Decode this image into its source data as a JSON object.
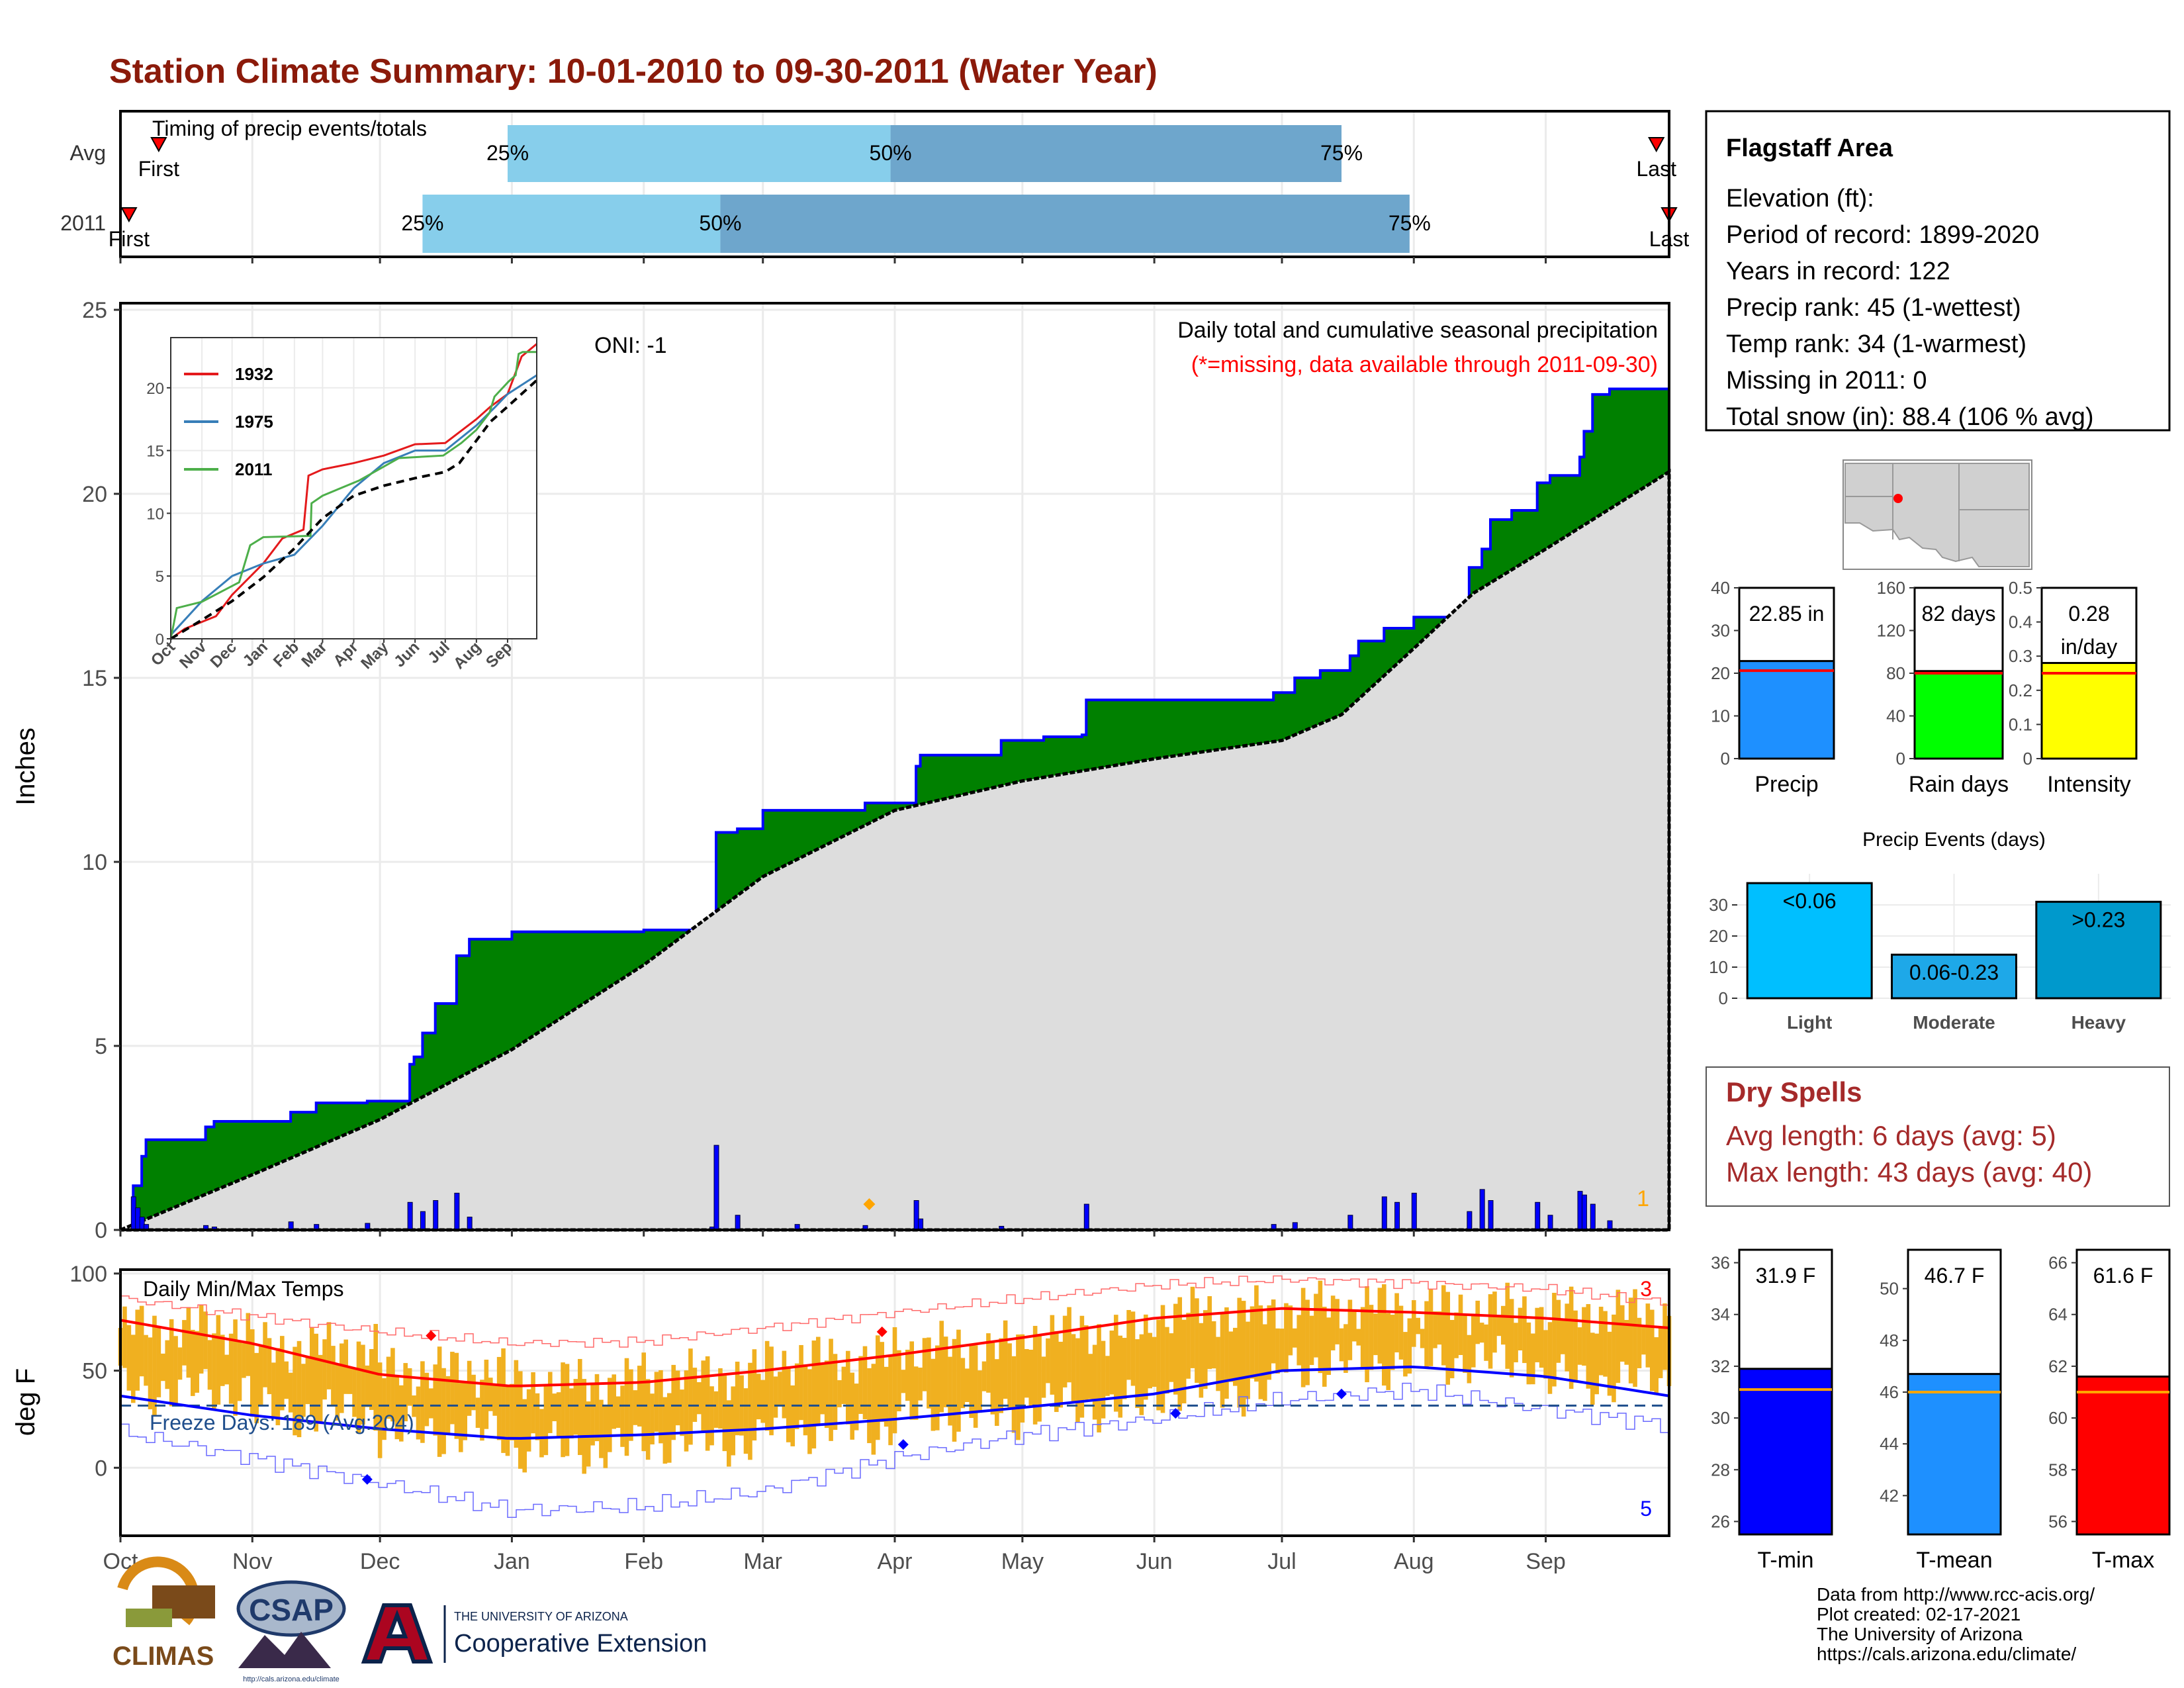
{
  "page": {
    "title": "Station Climate Summary: 10-01-2010 to 09-30-2011 (Water Year)"
  },
  "colors": {
    "title": "#8b1a0a",
    "q_light": "#87ceeb",
    "q_dark": "#6ea6cc",
    "cum_fill": "#008000",
    "cum_line": "#0000ff",
    "avg_fill": "#dddddd",
    "daily_bar": "#0000ff",
    "temp_bar": "#f0b020",
    "tmax_avg": "#ff0000",
    "tmin_avg": "#0000ff",
    "dry_spells": "#a52a2a",
    "precip_bar": "#1e90ff",
    "raindays_bar": "#00ff00",
    "intensity_bar": "#ffff00",
    "tmin_bar": "#0000ff",
    "tmean_bar": "#1e90ff",
    "tmax_bar": "#ff0000",
    "events_light": "#00bfff",
    "events_moderate": "#1ea8e8",
    "events_heavy": "#0099cc"
  },
  "chart_data": [
    {
      "id": "timing",
      "type": "bar",
      "title": "Timing of precip events/totals",
      "categories": [
        "Avg",
        "2011"
      ],
      "x_axis": "date",
      "xlim": [
        "2010-10-01",
        "2011-09-30"
      ],
      "series": [
        {
          "name": "Avg",
          "first": "2010-10-10",
          "q25": "2010-12-31",
          "q50": "2011-03-31",
          "q75": "2011-07-15",
          "last": "2011-09-27",
          "labels": {
            "first": "First",
            "last": "Last",
            "q25": "25%",
            "q50": "50%",
            "q75": "75%"
          }
        },
        {
          "name": "2011",
          "first": "2010-10-03",
          "q25": "2010-12-11",
          "q50": "2011-02-19",
          "q75": "2011-07-31",
          "last": "2011-09-30",
          "labels": {
            "first": "First",
            "last": "Last",
            "q25": "25%",
            "q50": "50%",
            "q75": "75%"
          }
        }
      ]
    },
    {
      "id": "precip",
      "type": "area",
      "ylabel": "Inches",
      "ylim": [
        0,
        25
      ],
      "yticks": [
        0,
        5,
        10,
        15,
        20,
        25
      ],
      "x_axis": "date",
      "xlim": [
        "2010-10-01",
        "2011-09-30"
      ],
      "grid": true,
      "annotations": {
        "oni": "ONI: -1",
        "subtitle": "Daily total and cumulative seasonal precipitation",
        "missing": "(*=missing, data available through 2011-09-30)",
        "corner_count": "1"
      },
      "avg_cumulative": {
        "x": [
          "2010-10-01",
          "2010-11-01",
          "2010-12-01",
          "2011-01-01",
          "2011-02-01",
          "2011-03-01",
          "2011-04-01",
          "2011-05-01",
          "2011-06-01",
          "2011-07-01",
          "2011-07-15",
          "2011-08-01",
          "2011-08-15",
          "2011-09-01",
          "2011-09-30"
        ],
        "y": [
          0.0,
          1.5,
          3.0,
          4.9,
          7.2,
          9.6,
          11.4,
          12.2,
          12.8,
          13.3,
          14.0,
          15.8,
          17.3,
          18.5,
          20.6
        ]
      },
      "cumulative_2011": {
        "x": [
          "2010-10-01",
          "2010-10-04",
          "2010-10-06",
          "2010-10-07",
          "2010-10-21",
          "2010-10-23",
          "2010-11-10",
          "2010-11-16",
          "2010-11-28",
          "2010-12-08",
          "2010-12-09",
          "2010-12-11",
          "2010-12-14",
          "2010-12-19",
          "2010-12-22",
          "2011-01-01",
          "2011-02-01",
          "2011-02-17",
          "2011-02-18",
          "2011-02-23",
          "2011-03-01",
          "2011-03-09",
          "2011-03-25",
          "2011-04-06",
          "2011-04-07",
          "2011-04-26",
          "2011-05-06",
          "2011-05-15",
          "2011-05-16",
          "2011-06-01",
          "2011-06-29",
          "2011-07-04",
          "2011-07-10",
          "2011-07-17",
          "2011-07-19",
          "2011-07-25",
          "2011-08-01",
          "2011-08-14",
          "2011-08-17",
          "2011-08-19",
          "2011-08-24",
          "2011-08-30",
          "2011-09-02",
          "2011-09-09",
          "2011-09-10",
          "2011-09-12",
          "2011-09-16",
          "2011-09-30"
        ],
        "y": [
          0.0,
          1.2,
          2.0,
          2.45,
          2.8,
          2.95,
          3.2,
          3.45,
          3.5,
          4.5,
          4.7,
          5.35,
          6.15,
          7.45,
          7.9,
          8.1,
          8.15,
          8.2,
          10.8,
          10.9,
          11.4,
          11.4,
          11.6,
          12.6,
          12.9,
          13.3,
          13.4,
          13.45,
          14.4,
          14.4,
          14.6,
          15.0,
          15.2,
          15.6,
          16.0,
          16.35,
          16.65,
          18.0,
          18.5,
          19.3,
          19.55,
          20.3,
          20.5,
          21.0,
          21.7,
          22.7,
          22.85,
          22.85
        ]
      },
      "daily": {
        "x": [
          "2010-10-04",
          "2010-10-05",
          "2010-10-06",
          "2010-10-07",
          "2010-10-21",
          "2010-10-23",
          "2010-11-10",
          "2010-11-16",
          "2010-11-28",
          "2010-12-08",
          "2010-12-11",
          "2010-12-14",
          "2010-12-19",
          "2010-12-22",
          "2011-02-17",
          "2011-02-18",
          "2011-02-23",
          "2011-03-09",
          "2011-03-25",
          "2011-04-06",
          "2011-04-07",
          "2011-04-26",
          "2011-05-16",
          "2011-06-29",
          "2011-07-04",
          "2011-07-17",
          "2011-07-25",
          "2011-07-28",
          "2011-08-01",
          "2011-08-14",
          "2011-08-17",
          "2011-08-19",
          "2011-08-30",
          "2011-09-02",
          "2011-09-09",
          "2011-09-10",
          "2011-09-12",
          "2011-09-16"
        ],
        "y": [
          0.9,
          0.6,
          0.35,
          0.15,
          0.12,
          0.08,
          0.22,
          0.15,
          0.18,
          0.75,
          0.5,
          0.8,
          1.0,
          0.35,
          0.08,
          2.3,
          0.4,
          0.15,
          0.12,
          0.8,
          0.3,
          0.1,
          0.7,
          0.15,
          0.2,
          0.4,
          0.9,
          0.75,
          1.0,
          0.5,
          1.1,
          0.8,
          0.75,
          0.4,
          1.05,
          0.95,
          0.7,
          0.25
        ]
      }
    },
    {
      "id": "inset",
      "type": "line",
      "ylim": [
        0,
        24
      ],
      "yticks": [
        0,
        5,
        10,
        15,
        20
      ],
      "x_axis": "date",
      "xlim": [
        "2010-10-01",
        "2011-09-30"
      ],
      "xticks": [
        [
          "2010-10-01",
          "Oct"
        ],
        [
          "2010-11-01",
          "Nov"
        ],
        [
          "2010-12-01",
          "Dec"
        ],
        [
          "2011-01-01",
          "Jan"
        ],
        [
          "2011-02-01",
          "Feb"
        ],
        [
          "2011-03-01",
          "Mar"
        ],
        [
          "2011-04-01",
          "Apr"
        ],
        [
          "2011-05-01",
          "May"
        ],
        [
          "2011-06-01",
          "Jun"
        ],
        [
          "2011-07-01",
          "Jul"
        ],
        [
          "2011-08-01",
          "Aug"
        ],
        [
          "2011-09-01",
          "Sep"
        ]
      ],
      "series": [
        {
          "name": "1932",
          "color": "#e41a1c",
          "x": [
            "2010-10-01",
            "2010-10-15",
            "2010-11-15",
            "2010-12-01",
            "2011-01-01",
            "2011-01-20",
            "2011-02-10",
            "2011-02-15",
            "2011-03-01",
            "2011-04-01",
            "2011-05-01",
            "2011-06-01",
            "2011-07-01",
            "2011-08-01",
            "2011-08-15",
            "2011-09-01",
            "2011-09-15",
            "2011-09-30"
          ],
          "y": [
            0,
            0.8,
            1.8,
            3.5,
            6.0,
            8.0,
            8.7,
            13.0,
            13.5,
            14.0,
            14.6,
            15.5,
            15.6,
            17.5,
            18.5,
            19.5,
            22.5,
            23.5
          ]
        },
        {
          "name": "1975",
          "color": "#377eb8",
          "x": [
            "2010-10-01",
            "2010-11-01",
            "2010-12-01",
            "2011-01-01",
            "2011-02-01",
            "2011-03-01",
            "2011-04-01",
            "2011-05-01",
            "2011-06-01",
            "2011-07-01",
            "2011-08-01",
            "2011-08-20",
            "2011-09-01",
            "2011-09-30"
          ],
          "y": [
            0.3,
            3.0,
            5.0,
            6.0,
            6.7,
            9.0,
            12.0,
            14.0,
            15.0,
            15.0,
            17.0,
            18.5,
            19.5,
            21.0
          ]
        },
        {
          "name": "2011",
          "color": "#4daf4a",
          "x": [
            "2010-10-01",
            "2010-10-04",
            "2010-10-07",
            "2010-11-01",
            "2010-12-08",
            "2010-12-19",
            "2011-01-01",
            "2011-02-17",
            "2011-02-18",
            "2011-03-01",
            "2011-04-06",
            "2011-05-16",
            "2011-06-29",
            "2011-07-17",
            "2011-08-01",
            "2011-08-14",
            "2011-08-19",
            "2011-09-02",
            "2011-09-09",
            "2011-09-12",
            "2011-09-16",
            "2011-09-30"
          ],
          "y": [
            0,
            1.2,
            2.45,
            2.95,
            4.5,
            7.45,
            8.1,
            8.2,
            10.8,
            11.4,
            12.6,
            14.4,
            14.6,
            15.6,
            16.65,
            18.0,
            19.3,
            20.5,
            21.0,
            22.7,
            22.85,
            22.85
          ]
        },
        {
          "name": "avg",
          "color": "#000000",
          "dashed": true,
          "x": [
            "2010-10-01",
            "2010-11-01",
            "2010-12-01",
            "2011-01-01",
            "2011-02-01",
            "2011-03-01",
            "2011-04-01",
            "2011-05-01",
            "2011-06-01",
            "2011-07-01",
            "2011-07-15",
            "2011-08-01",
            "2011-08-15",
            "2011-09-01",
            "2011-09-30"
          ],
          "y": [
            0.0,
            1.5,
            3.0,
            4.9,
            7.2,
            9.6,
            11.4,
            12.2,
            12.8,
            13.3,
            14.0,
            15.8,
            17.3,
            18.5,
            20.6
          ]
        }
      ]
    },
    {
      "id": "temps",
      "type": "bar",
      "title": "Daily Min/Max Temps",
      "ylabel": "deg F",
      "ylim": [
        -35,
        102
      ],
      "yticks": [
        0,
        50,
        100
      ],
      "x_axis": "date",
      "xlim": [
        "2010-10-01",
        "2011-09-30"
      ],
      "xticks": [
        [
          "2010-10-01",
          "Oct"
        ],
        [
          "2010-11-01",
          "Nov"
        ],
        [
          "2010-12-01",
          "Dec"
        ],
        [
          "2011-01-01",
          "Jan"
        ],
        [
          "2011-02-01",
          "Feb"
        ],
        [
          "2011-03-01",
          "Mar"
        ],
        [
          "2011-04-01",
          "Apr"
        ],
        [
          "2011-05-01",
          "May"
        ],
        [
          "2011-06-01",
          "Jun"
        ],
        [
          "2011-07-01",
          "Jul"
        ],
        [
          "2011-08-01",
          "Aug"
        ],
        [
          "2011-09-01",
          "Sep"
        ]
      ],
      "grid": true,
      "freeze_label": "Freeze Days: 189 (Avg:204)",
      "freeze_line": 32,
      "count_top": "3",
      "count_bottom": "5",
      "tmax_avg": {
        "x": [
          "2010-10-01",
          "2010-11-01",
          "2010-12-01",
          "2011-01-01",
          "2011-02-01",
          "2011-03-01",
          "2011-04-01",
          "2011-05-01",
          "2011-06-01",
          "2011-07-01",
          "2011-08-01",
          "2011-09-01",
          "2011-09-30"
        ],
        "y": [
          76,
          64,
          48,
          42,
          44,
          50,
          58,
          67,
          77,
          82,
          80,
          77,
          72
        ]
      },
      "tmin_avg": {
        "x": [
          "2010-10-01",
          "2010-11-01",
          "2010-12-01",
          "2011-01-01",
          "2011-02-01",
          "2011-03-01",
          "2011-04-01",
          "2011-05-01",
          "2011-06-01",
          "2011-07-01",
          "2011-08-01",
          "2011-09-01",
          "2011-09-30"
        ],
        "y": [
          37,
          27,
          20,
          15,
          17,
          20,
          25,
          31,
          38,
          50,
          52,
          47,
          37
        ]
      },
      "tmax_record": {
        "x": [
          "2010-10-01",
          "2010-11-01",
          "2010-12-01",
          "2011-01-01",
          "2011-02-01",
          "2011-03-01",
          "2011-04-01",
          "2011-05-01",
          "2011-06-01",
          "2011-07-01",
          "2011-08-01",
          "2011-09-01",
          "2011-09-30"
        ],
        "y": [
          87,
          78,
          70,
          64,
          65,
          72,
          80,
          87,
          94,
          97,
          95,
          92,
          85
        ]
      },
      "tmin_record": {
        "x": [
          "2010-10-01",
          "2010-11-01",
          "2010-12-01",
          "2011-01-01",
          "2011-02-01",
          "2011-03-01",
          "2011-04-01",
          "2011-05-01",
          "2011-06-01",
          "2011-07-01",
          "2011-08-01",
          "2011-09-01",
          "2011-09-30"
        ],
        "y": [
          18,
          5,
          -8,
          -22,
          -20,
          -12,
          5,
          17,
          25,
          35,
          40,
          30,
          22
        ]
      },
      "monthly_high": [
        72,
        62,
        50,
        44,
        48,
        56,
        62,
        70,
        80,
        83,
        82,
        80
      ],
      "monthly_low": [
        40,
        28,
        18,
        10,
        14,
        20,
        27,
        32,
        40,
        53,
        55,
        45
      ]
    },
    {
      "id": "precip-summary",
      "type": "bar",
      "panels": [
        {
          "category": "Precip",
          "value": 22.85,
          "label": "22.85 in",
          "avg": 20.6,
          "ylim": [
            0,
            40
          ],
          "yticks": [
            0,
            10,
            20,
            30,
            40
          ]
        },
        {
          "category": "Rain days",
          "value": 82,
          "label": "82 days",
          "avg": 80,
          "ylim": [
            0,
            160
          ],
          "yticks": [
            0,
            40,
            80,
            120,
            160
          ]
        },
        {
          "category": "Intensity",
          "value": 0.28,
          "label": "0.28",
          "label2": "in/day",
          "avg": 0.25,
          "ylim": [
            0,
            0.5
          ],
          "yticks": [
            0.0,
            0.1,
            0.2,
            0.3,
            0.4,
            0.5
          ]
        }
      ]
    },
    {
      "id": "precip-events",
      "type": "bar",
      "title": "Precip Events (days)",
      "ylim": [
        0,
        40
      ],
      "yticks": [
        0,
        10,
        20,
        30
      ],
      "categories": [
        "Light",
        "Moderate",
        "Heavy"
      ],
      "values": [
        37,
        14,
        31
      ],
      "labels": [
        "<0.06",
        "0.06-0.23",
        ">0.23"
      ]
    },
    {
      "id": "temp-summary",
      "type": "bar",
      "panels": [
        {
          "category": "T-min",
          "value": 31.9,
          "label": "31.9 F",
          "avg": 31.1,
          "ylim": [
            25.5,
            36.5
          ],
          "yticks": [
            26,
            28,
            30,
            32,
            34,
            36
          ]
        },
        {
          "category": "T-mean",
          "value": 46.7,
          "label": "46.7 F",
          "avg": 46.0,
          "ylim": [
            40.5,
            51.5
          ],
          "yticks": [
            42,
            44,
            46,
            48,
            50
          ]
        },
        {
          "category": "T-max",
          "value": 61.6,
          "label": "61.6 F",
          "avg": 61.0,
          "ylim": [
            55.5,
            66.5
          ],
          "yticks": [
            56,
            58,
            60,
            62,
            64,
            66
          ]
        }
      ]
    }
  ],
  "month_labels": [
    "Oct",
    "Nov",
    "Dec",
    "Jan",
    "Feb",
    "Mar",
    "Apr",
    "May",
    "Jun",
    "Jul",
    "Aug",
    "Sep"
  ],
  "info": {
    "name": "Flagstaff Area",
    "elevation": "Elevation (ft):",
    "period": "Period of record: 1899-2020",
    "years": "Years in record: 122",
    "precip_rank": "Precip rank: 45 (1-wettest)",
    "temp_rank": "Temp rank: 34 (1-warmest)",
    "missing": "Missing in 2011: 0",
    "snow": "Total snow (in): 88.4 (106 % avg)"
  },
  "dry_spells": {
    "title": "Dry Spells",
    "avg": "Avg length: 6 days (avg: 5)",
    "max": "Max length: 43 days (avg: 40)"
  },
  "footer": {
    "line1": "Data from http://www.rcc-acis.org/",
    "line2": "Plot created: 02-17-2021",
    "line3": "The University of Arizona",
    "line4": "https://cals.arizona.edu/climate/"
  },
  "logos": {
    "climas": "CLIMAS",
    "csap": "CSAP",
    "csap_url": "http://cals.arizona.edu/climate",
    "ua_small": "THE UNIVERSITY OF ARIZONA",
    "ua_big": "Cooperative Extension"
  }
}
